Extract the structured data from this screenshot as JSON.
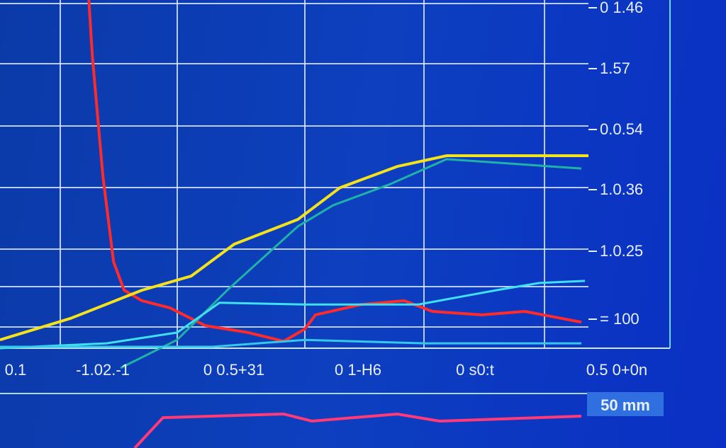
{
  "chart_data": {
    "type": "line",
    "title": "",
    "xlabel": "",
    "ylabel": "",
    "grid": true,
    "xlim": [
      0,
      100
    ],
    "ylim": [
      0,
      100
    ],
    "y_tick_labels": [
      "0 1.46",
      "1.57",
      "0.0.54",
      "1.0.36",
      "1.0.25",
      "= 100"
    ],
    "x_tick_labels": [
      "0.1",
      "-1.02.-1",
      "0 0.5+31",
      "0 1-H6",
      "0 s0:t",
      "0.5 0+0n"
    ],
    "series": [
      {
        "color": "#ff2a2a",
        "x": [
          15.1,
          15.7,
          17.5,
          19.3,
          21.1,
          24.1,
          28.9,
          34.9,
          42.2,
          48.2,
          51.8,
          53.6,
          61.4,
          68.7,
          73.5,
          81.9,
          89.2,
          98.8
        ],
        "y": [
          100,
          83.7,
          49,
          24.5,
          16.3,
          13.3,
          11.2,
          6.1,
          4.1,
          1.6,
          5.1,
          9.2,
          12.2,
          13.3,
          10.2,
          9.2,
          10.2,
          7.1
        ]
      },
      {
        "color": "#f4e21c",
        "x": [
          0,
          12,
          24.1,
          32.5,
          39.8,
          50.6,
          57.8,
          67.5,
          75.9,
          100
        ],
        "y": [
          2,
          8.2,
          16.3,
          20.4,
          29.6,
          36.7,
          45.9,
          52,
          55.1,
          55.1
        ]
      },
      {
        "color": "#1fb3a8",
        "x": [
          20.5,
          30.1,
          38.6,
          50.6,
          56.6,
          66.3,
          75.9,
          98.8
        ],
        "y": [
          -6.1,
          2,
          16.3,
          34.7,
          40.8,
          46.9,
          54.1,
          51.4
        ]
      },
      {
        "color": "#3fe0f0",
        "x": [
          0,
          18.1,
          30.1,
          37.3,
          51.8,
          71.1,
          84.3,
          91.6,
          99.4
        ],
        "y": [
          -0.4,
          1,
          4.1,
          12.7,
          12.2,
          12.2,
          16.3,
          18.4,
          19
        ]
      },
      {
        "color": "#35c8e8",
        "x": [
          0,
          36.1,
          51.8,
          72.3,
          98.8
        ],
        "y": [
          0,
          0,
          2,
          1,
          1
        ]
      }
    ],
    "lower_panel": {
      "label": "50 mm",
      "series": [
        {
          "color": "#ff3a78",
          "x": [
            22.9,
            27.7,
            48.2,
            53,
            67.5,
            74.7,
            98.8
          ],
          "y": [
            0,
            81,
            90.6,
            71.7,
            90.6,
            71.7,
            84.9
          ]
        }
      ]
    }
  }
}
